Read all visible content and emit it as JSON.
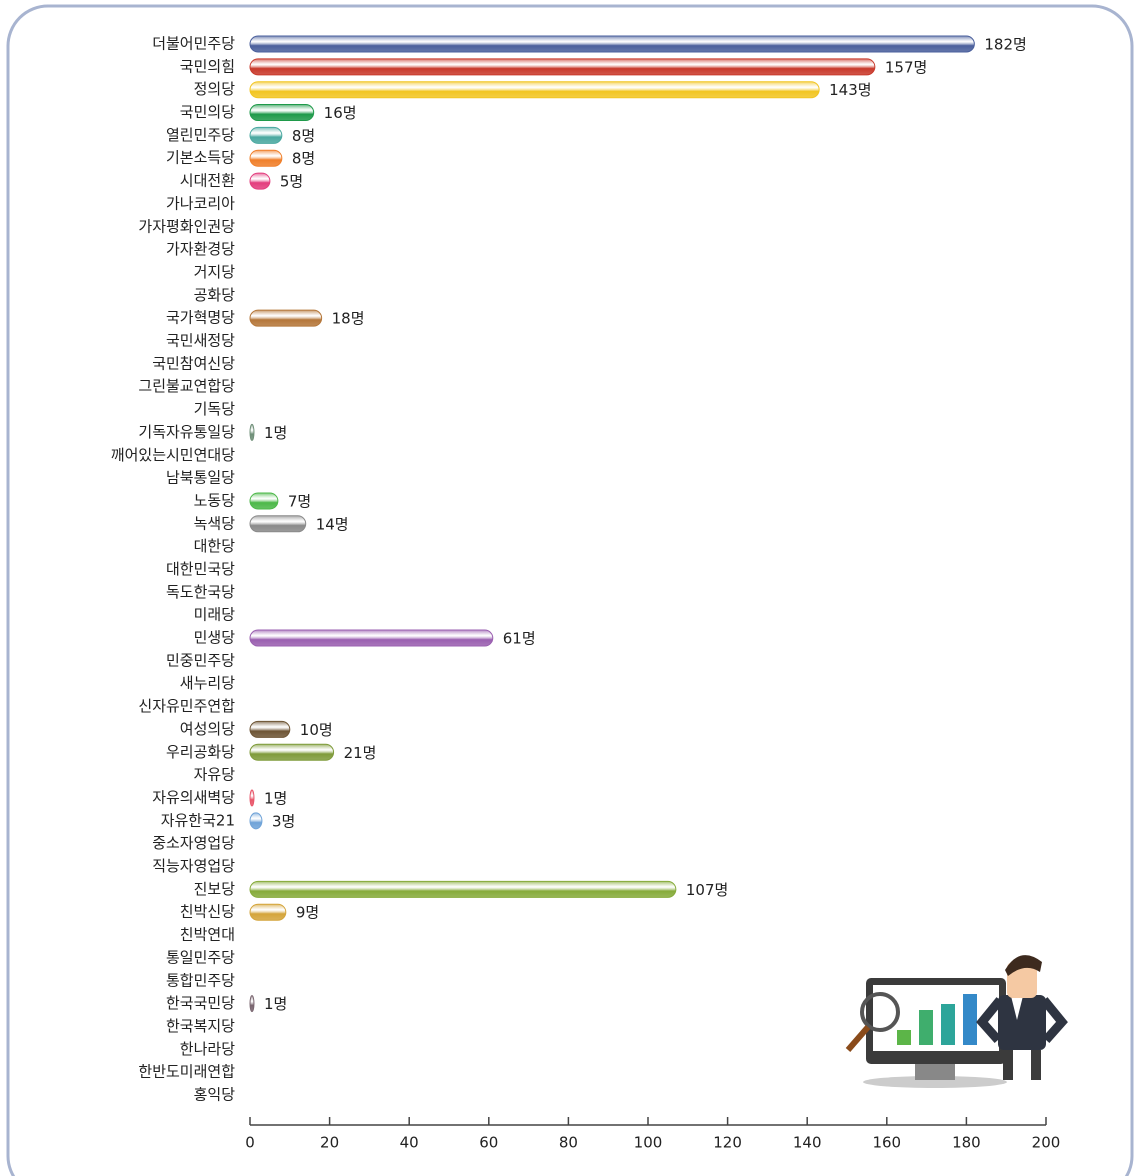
{
  "chart_data": {
    "type": "hbar",
    "categories": [
      "더불어민주당",
      "국민의힘",
      "정의당",
      "국민의당",
      "열린민주당",
      "기본소득당",
      "시대전환",
      "가나코리아",
      "가자평화인권당",
      "가자환경당",
      "거지당",
      "공화당",
      "국가혁명당",
      "국민새정당",
      "국민참여신당",
      "그린불교연합당",
      "기독당",
      "기독자유통일당",
      "깨어있는시민연대당",
      "남북통일당",
      "노동당",
      "녹색당",
      "대한당",
      "대한민국당",
      "독도한국당",
      "미래당",
      "민생당",
      "민중민주당",
      "새누리당",
      "신자유민주연합",
      "여성의당",
      "우리공화당",
      "자유당",
      "자유의새벽당",
      "자유한국21",
      "중소자영업당",
      "직능자영업당",
      "진보당",
      "친박신당",
      "친박연대",
      "통일민주당",
      "통합민주당",
      "한국국민당",
      "한국복지당",
      "한나라당",
      "한반도미래연합",
      "홍익당"
    ],
    "values": [
      182,
      157,
      143,
      16,
      8,
      8,
      5,
      null,
      null,
      null,
      null,
      null,
      18,
      null,
      null,
      null,
      null,
      1,
      null,
      null,
      7,
      14,
      null,
      null,
      null,
      null,
      61,
      null,
      null,
      null,
      10,
      21,
      null,
      1,
      3,
      null,
      null,
      107,
      9,
      null,
      null,
      null,
      1,
      null,
      null,
      null,
      null
    ],
    "value_labels": [
      "182명",
      "157명",
      "143명",
      "16명",
      "8명",
      "8명",
      "5명",
      null,
      null,
      null,
      null,
      null,
      "18명",
      null,
      null,
      null,
      null,
      "1명",
      null,
      null,
      "7명",
      "14명",
      null,
      null,
      null,
      null,
      "61명",
      null,
      null,
      null,
      "10명",
      "21명",
      null,
      "1명",
      "3명",
      null,
      null,
      "107명",
      "9명",
      null,
      null,
      null,
      "1명",
      null,
      null,
      null,
      null
    ],
    "colors": [
      "#4a5f9c",
      "#c8392b",
      "#f2c522",
      "#1f9a4a",
      "#4aa8a0",
      "#f07f2a",
      "#e33d7e",
      null,
      null,
      null,
      null,
      null,
      "#b5773a",
      null,
      null,
      null,
      null,
      "#6f8f78",
      null,
      null,
      "#4cb848",
      "#8a8a8a",
      null,
      null,
      null,
      null,
      "#9a5fb0",
      null,
      null,
      null,
      "#6e5535",
      "#7f9b3a",
      null,
      "#e8566a",
      "#6fa3d8",
      null,
      null,
      "#86ab3a",
      "#d4a43a",
      null,
      null,
      null,
      "#7a6670",
      null,
      null,
      null,
      null
    ],
    "xlim": [
      0,
      200
    ],
    "xticks": [
      0,
      20,
      40,
      60,
      80,
      100,
      120,
      140,
      160,
      180,
      200
    ]
  }
}
